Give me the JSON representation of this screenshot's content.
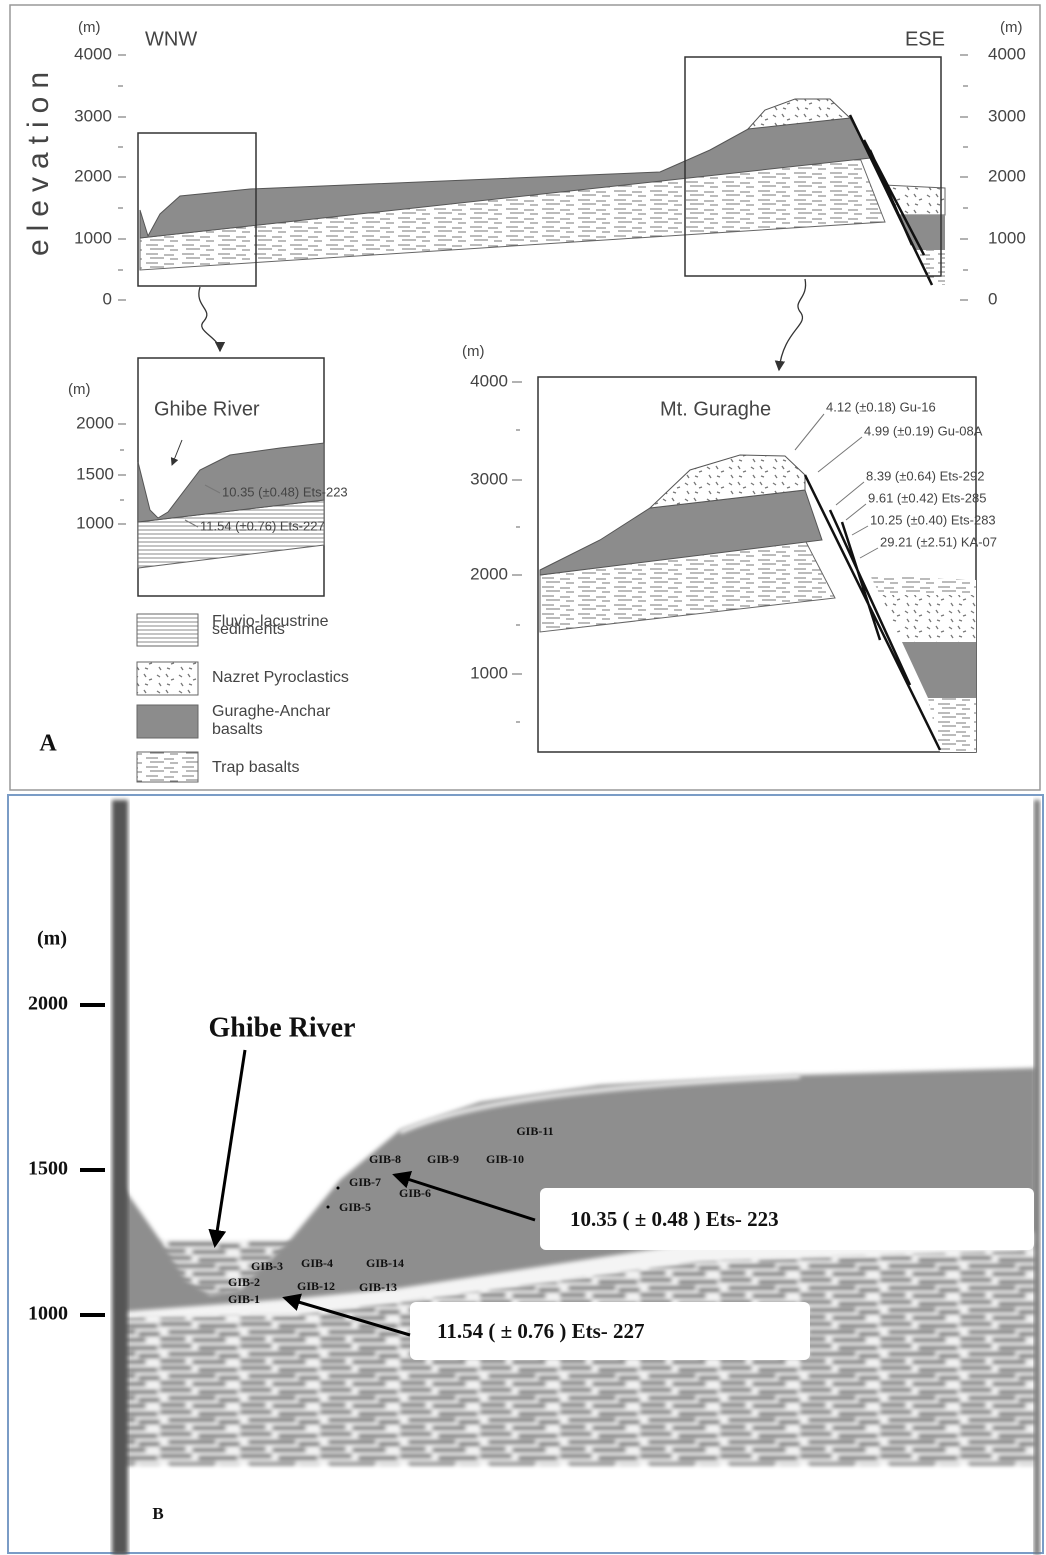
{
  "panel_a": {
    "label": "A",
    "direction_left": "WNW",
    "direction_right": "ESE",
    "axis_title": "elevation",
    "unit_left": "(m)",
    "unit_right": "(m)",
    "left_ticks": [
      4000,
      3000,
      2000,
      1000,
      0
    ],
    "right_ticks": [
      4000,
      3000,
      2000,
      1000,
      0
    ],
    "inset_left": {
      "unit": "(m)",
      "ticks": [
        2000,
        1500,
        1000
      ],
      "title": "Ghibe River",
      "ages": [
        "10.35 (±0.48) Ets-223",
        "11.54 (±0.76) Ets-227"
      ]
    },
    "inset_right": {
      "unit": "(m)",
      "ticks": [
        4000,
        3000,
        2000,
        1000
      ],
      "title": "Mt. Guraghe",
      "ages": [
        "4.12 (±0.18) Gu-16",
        "4.99 (±0.19) Gu-08A",
        "8.39 (±0.64) Ets-292",
        "9.61 (±0.42) Ets-285",
        "10.25 (±0.40) Ets-283",
        "29.21 (±2.51) KA-07"
      ]
    },
    "legend": [
      [
        "Fluvio-lacustrine",
        "sediments"
      ],
      [
        "Nazret Pyroclastics"
      ],
      [
        "Guraghe-Anchar",
        "basalts"
      ],
      [
        "Trap basalts"
      ]
    ]
  },
  "panel_b": {
    "label": "B",
    "unit": "(m)",
    "ticks": [
      2000,
      1500,
      1000
    ],
    "title": "Ghibe River",
    "samples": [
      "GIB-1",
      "GIB-2",
      "GIB-3",
      "GIB-4",
      "GIB-5",
      "GIB-6",
      "GIB-7",
      "GIB-8",
      "GIB-9",
      "GIB-10",
      "GIB-11",
      "GIB-12",
      "GIB-13",
      "GIB-14"
    ],
    "ages": [
      "10.35 ( ± 0.48 ) Ets- 223",
      "11.54 ( ± 0.76 ) Ets- 227"
    ]
  }
}
